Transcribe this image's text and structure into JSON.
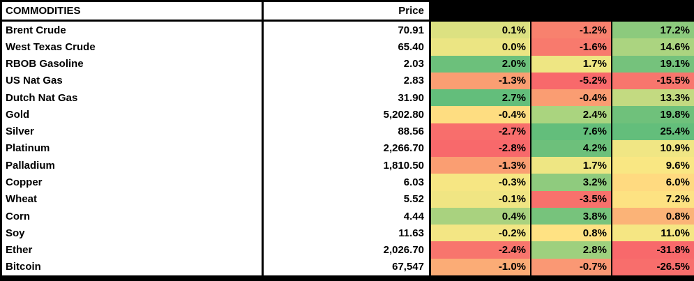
{
  "table": {
    "title": "COMMODITIES",
    "price_header": "Price",
    "redacted_column_headers": [
      "",
      "",
      ""
    ],
    "rows": [
      {
        "name": "Brent Crude",
        "price": "70.91",
        "changes": [
          "0.1%",
          "-1.2%",
          "17.2%"
        ],
        "colors": [
          "#DCE181",
          "#F8816E",
          "#8CCA7D"
        ]
      },
      {
        "name": "West Texas Crude",
        "price": "65.40",
        "changes": [
          "0.0%",
          "-1.6%",
          "14.6%"
        ],
        "colors": [
          "#EBE583",
          "#F87A6D",
          "#ABD480"
        ]
      },
      {
        "name": "RBOB Gasoline",
        "price": "2.03",
        "changes": [
          "2.0%",
          "1.7%",
          "19.1%"
        ],
        "colors": [
          "#6CC07B",
          "#EEE683",
          "#75C27C"
        ]
      },
      {
        "name": "US Nat Gas",
        "price": "2.83",
        "changes": [
          "-1.3%",
          "-5.2%",
          "-15.5%"
        ],
        "colors": [
          "#FA9E72",
          "#F8696B",
          "#F8766D"
        ]
      },
      {
        "name": "Dutch Nat Gas",
        "price": "31.90",
        "changes": [
          "2.7%",
          "-0.4%",
          "13.3%"
        ],
        "colors": [
          "#63BE7B",
          "#FA9D72",
          "#C3DA81"
        ]
      },
      {
        "name": "Gold",
        "price": "5,202.80",
        "changes": [
          "-0.4%",
          "2.4%",
          "19.8%"
        ],
        "colors": [
          "#FEDD81",
          "#AAD47F",
          "#6FC17B"
        ]
      },
      {
        "name": "Silver",
        "price": "88.56",
        "changes": [
          "-2.7%",
          "7.6%",
          "25.4%"
        ],
        "colors": [
          "#F86E6C",
          "#63BE7B",
          "#63BE7B"
        ]
      },
      {
        "name": "Platinum",
        "price": "2,266.70",
        "changes": [
          "-2.8%",
          "4.2%",
          "10.9%"
        ],
        "colors": [
          "#F8696B",
          "#6DC07B",
          "#F0E684"
        ]
      },
      {
        "name": "Palladium",
        "price": "1,810.50",
        "changes": [
          "-1.3%",
          "1.7%",
          "9.6%"
        ],
        "colors": [
          "#FA9E72",
          "#EEE683",
          "#F9E783"
        ]
      },
      {
        "name": "Copper",
        "price": "6.03",
        "changes": [
          "-0.3%",
          "3.2%",
          "6.0%"
        ],
        "colors": [
          "#F6E683",
          "#8FCB7E",
          "#FFDA80"
        ]
      },
      {
        "name": "Wheat",
        "price": "5.52",
        "changes": [
          "-0.1%",
          "-3.5%",
          "7.2%"
        ],
        "colors": [
          "#F0E583",
          "#F8716C",
          "#FDE282"
        ]
      },
      {
        "name": "Corn",
        "price": "4.44",
        "changes": [
          "0.4%",
          "3.8%",
          "0.8%"
        ],
        "colors": [
          "#A9D27F",
          "#77C37C",
          "#FBB377"
        ]
      },
      {
        "name": "Soy",
        "price": "11.63",
        "changes": [
          "-0.2%",
          "0.8%",
          "11.0%"
        ],
        "colors": [
          "#F3E684",
          "#FFE283",
          "#F5E683"
        ]
      },
      {
        "name": "Ether",
        "price": "2,026.70",
        "changes": [
          "-2.4%",
          "2.8%",
          "-31.8%"
        ],
        "colors": [
          "#F8756D",
          "#9ED07E",
          "#F8696B"
        ]
      },
      {
        "name": "Bitcoin",
        "price": "67,547",
        "changes": [
          "-1.0%",
          "-0.7%",
          "-26.5%"
        ],
        "colors": [
          "#FBAC76",
          "#FA9874",
          "#F86E6C"
        ]
      }
    ]
  },
  "colors": {
    "border": "#000000",
    "header_background": "#FFFFFF",
    "redacted_header_background": "#000000",
    "scale_min_red": "#F8696B",
    "scale_mid_yellow": "#FFEB84",
    "scale_max_green": "#63BE7B"
  }
}
